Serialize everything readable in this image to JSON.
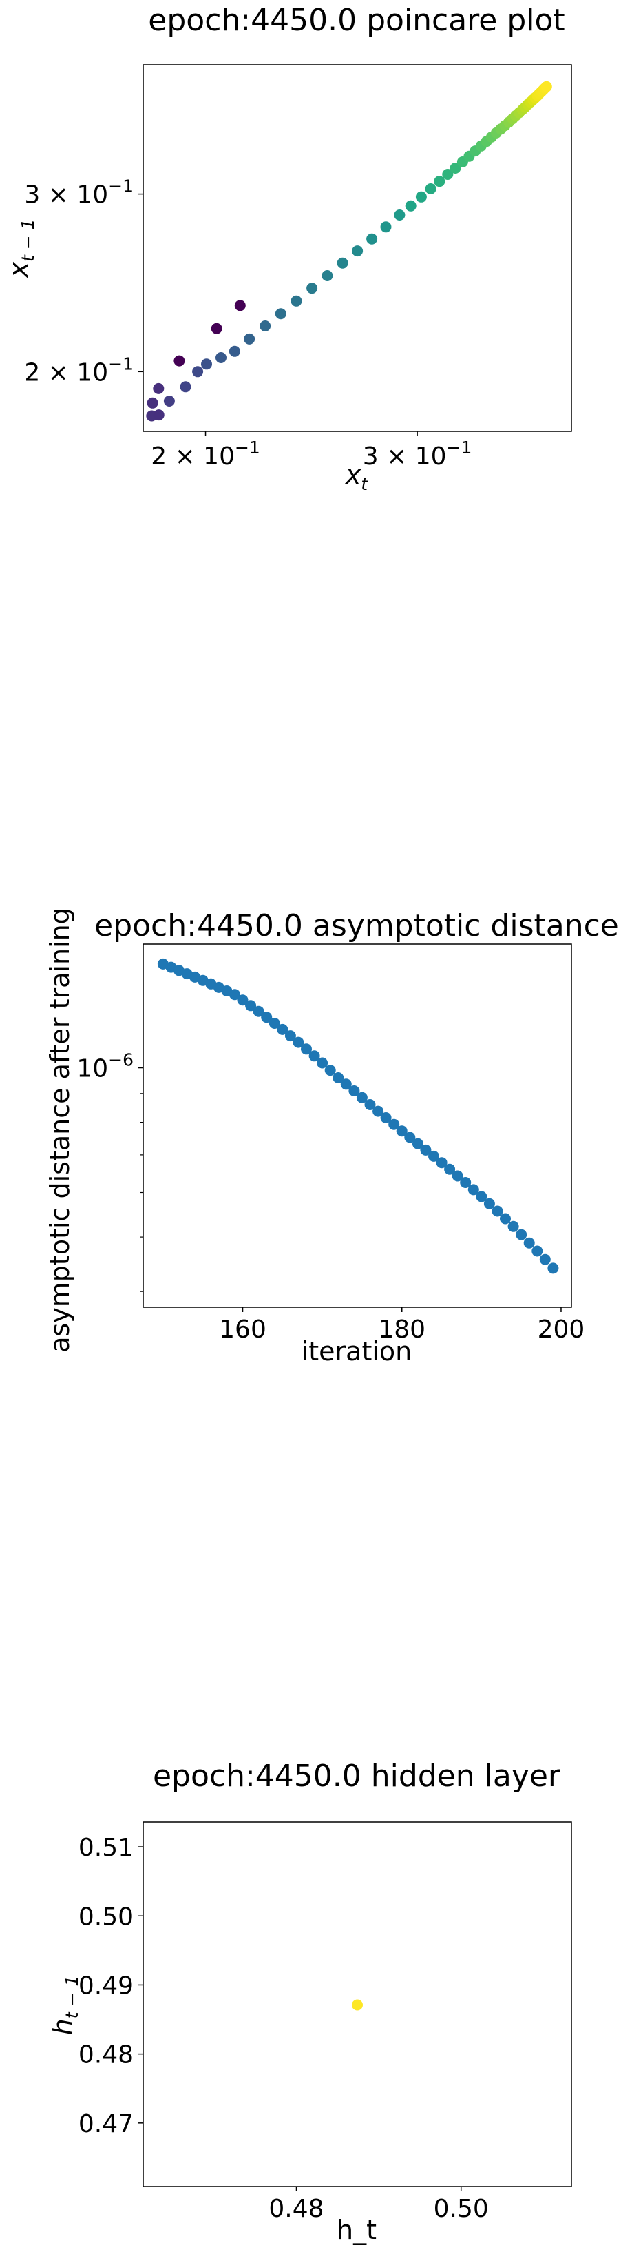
{
  "chart_data": [
    {
      "type": "scatter",
      "title": "epoch:4450.0 poincare plot",
      "xlabel_base": "x",
      "xlabel_sub": "t",
      "ylabel_base": "x",
      "ylabel_sub": "t − 1",
      "xscale": "log",
      "yscale": "log",
      "xlim": [
        0.1775,
        0.403
      ],
      "ylim": [
        0.1745,
        0.403
      ],
      "xticks": [
        {
          "value": 0.2,
          "mant": "2 × 10",
          "exp": "−1"
        },
        {
          "value": 0.3,
          "mant": "3 × 10",
          "exp": "−1"
        }
      ],
      "yticks": [
        {
          "value": 0.2,
          "mant": "2 × 10",
          "exp": "−1"
        },
        {
          "value": 0.3,
          "mant": "3 × 10",
          "exp": "−1"
        }
      ],
      "colormap": "viridis",
      "grid": false,
      "points": [
        [
          0.1804,
          0.1808
        ],
        [
          0.1807,
          0.1862
        ],
        [
          0.1829,
          0.1812
        ],
        [
          0.1828,
          0.1924
        ],
        [
          0.1866,
          0.187
        ],
        [
          0.1902,
          0.205
        ],
        [
          0.1925,
          0.1932
        ],
        [
          0.197,
          0.2
        ],
        [
          0.2004,
          0.2035
        ],
        [
          0.2043,
          0.2207
        ],
        [
          0.206,
          0.2065
        ],
        [
          0.2115,
          0.2095
        ],
        [
          0.2137,
          0.2326
        ],
        [
          0.2175,
          0.2155
        ],
        [
          0.2242,
          0.222
        ],
        [
          0.231,
          0.2283
        ],
        [
          0.238,
          0.235
        ],
        [
          0.2452,
          0.242
        ],
        [
          0.2525,
          0.249
        ],
        [
          0.26,
          0.2563
        ],
        [
          0.2675,
          0.2635
        ],
        [
          0.275,
          0.2708
        ],
        [
          0.2825,
          0.2783
        ],
        [
          0.29,
          0.286
        ],
        [
          0.2963,
          0.292
        ],
        [
          0.3023,
          0.298
        ],
        [
          0.3078,
          0.3036
        ],
        [
          0.313,
          0.3088
        ],
        [
          0.318,
          0.3138
        ],
        [
          0.3227,
          0.3183
        ],
        [
          0.3272,
          0.3228
        ],
        [
          0.3313,
          0.327
        ],
        [
          0.3352,
          0.331
        ],
        [
          0.339,
          0.3348
        ],
        [
          0.3425,
          0.3383
        ],
        [
          0.3458,
          0.3417
        ],
        [
          0.349,
          0.345
        ],
        [
          0.352,
          0.348
        ],
        [
          0.3548,
          0.3508
        ],
        [
          0.3575,
          0.3535
        ],
        [
          0.36,
          0.3562
        ],
        [
          0.3623,
          0.3588
        ],
        [
          0.3646,
          0.3612
        ],
        [
          0.3668,
          0.3636
        ],
        [
          0.3688,
          0.3658
        ],
        [
          0.3707,
          0.368
        ],
        [
          0.3725,
          0.37
        ],
        [
          0.3743,
          0.372
        ],
        [
          0.376,
          0.3738
        ],
        [
          0.3776,
          0.3756
        ],
        [
          0.379,
          0.3773
        ],
        [
          0.3805,
          0.379
        ],
        [
          0.3818,
          0.3805
        ],
        [
          0.383,
          0.382
        ],
        [
          0.3842,
          0.3834
        ]
      ],
      "colors": [
        "#46327e",
        "#472f7d",
        "#46307e",
        "#472f7d",
        "#433e85",
        "#440154",
        "#404588",
        "#3e4a89",
        "#3b528b",
        "#440154",
        "#38598c",
        "#365c8d",
        "#440154",
        "#33638d",
        "#306a8e",
        "#2d708e",
        "#2b758e",
        "#297b8e",
        "#27808e",
        "#25858e",
        "#238a8d",
        "#21908d",
        "#1f958b",
        "#1f9a8a",
        "#20a486",
        "#22a785",
        "#25ab82",
        "#2ab07f",
        "#2fb47c",
        "#35b779",
        "#3bbb75",
        "#42be71",
        "#4ac16d",
        "#52c569",
        "#5ac864",
        "#62cb5f",
        "#6ccd5a",
        "#75d054",
        "#7ed34f",
        "#89d548",
        "#93d741",
        "#9dd93b",
        "#a8db34",
        "#b2dd2d",
        "#bddf26",
        "#c8e020",
        "#d2e21b",
        "#dde318",
        "#e7e419",
        "#f1e51d",
        "#f4e61e",
        "#f6e620",
        "#f8e621",
        "#fae722",
        "#fde725"
      ]
    },
    {
      "type": "scatter",
      "title": "epoch:4450.0 asymptotic distance",
      "xlabel": "iteration",
      "ylabel": "asymptotic distance after training",
      "xlim": [
        147.5,
        201.3
      ],
      "yscale": "log",
      "ylim": [
        3.75e-07,
        1.66e-06
      ],
      "xticks": [
        160,
        180,
        200
      ],
      "yticks": [
        {
          "value": 1e-06,
          "mant": "10",
          "exp": "−6"
        }
      ],
      "y_minor_ticks": [
        4e-07,
        5e-07,
        6e-07,
        7e-07,
        8e-07,
        9e-07
      ],
      "color": "#1f77b4",
      "grid": false,
      "x": [
        150,
        151,
        152,
        153,
        154,
        155,
        156,
        157,
        158,
        159,
        160,
        161,
        162,
        163,
        164,
        165,
        166,
        167,
        168,
        169,
        170,
        171,
        172,
        173,
        174,
        175,
        176,
        177,
        178,
        179,
        180,
        181,
        182,
        183,
        184,
        185,
        186,
        187,
        188,
        189,
        190,
        191,
        192,
        193,
        194,
        195,
        196,
        197,
        198,
        199
      ],
      "y": [
        1.53e-06,
        1.51e-06,
        1.49e-06,
        1.47e-06,
        1.45e-06,
        1.43e-06,
        1.41e-06,
        1.39e-06,
        1.37e-06,
        1.35e-06,
        1.32e-06,
        1.29e-06,
        1.26e-06,
        1.23e-06,
        1.2e-06,
        1.17e-06,
        1.14e-06,
        1.11e-06,
        1.08e-06,
        1.05e-06,
        1.02e-06,
        9.9e-07,
        9.6e-07,
        9.35e-07,
        9.1e-07,
        8.85e-07,
        8.6e-07,
        8.37e-07,
        8.15e-07,
        7.93e-07,
        7.72e-07,
        7.52e-07,
        7.33e-07,
        7.14e-07,
        6.96e-07,
        6.78e-07,
        6.6e-07,
        6.42e-07,
        6.25e-07,
        6.07e-07,
        5.9e-07,
        5.73e-07,
        5.56e-07,
        5.39e-07,
        5.22e-07,
        5.05e-07,
        4.88e-07,
        4.72e-07,
        4.56e-07,
        4.4e-07
      ]
    },
    {
      "type": "scatter",
      "title": "epoch:4450.0 hidden layer",
      "xlabel": "h_t",
      "ylabel_base": "h",
      "ylabel_sub": "t − 1",
      "xlim": [
        0.4614,
        0.5134
      ],
      "ylim": [
        0.4608,
        0.5136
      ],
      "xticks": [
        0.48,
        0.5
      ],
      "yticks": [
        0.47,
        0.48,
        0.49,
        0.5,
        0.51
      ],
      "color": "#fde725",
      "grid": false,
      "points": [
        [
          0.4874,
          0.4871
        ]
      ]
    }
  ]
}
